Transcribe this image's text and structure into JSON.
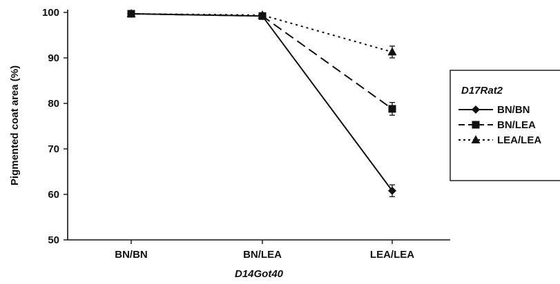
{
  "chart_data": {
    "type": "line",
    "xlabel": "D14Got40",
    "ylabel": "Pigmented coat area (%)",
    "categories": [
      "BN/BN",
      "BN/LEA",
      "LEA/LEA"
    ],
    "ylim": [
      50,
      100
    ],
    "yticks": [
      "100",
      "90",
      "80",
      "70",
      "60",
      "50"
    ],
    "grid": false,
    "legend": {
      "title": "D17Rat2",
      "placement": "right"
    },
    "series": [
      {
        "name": "BN/BN",
        "values": [
          99.7,
          99.2,
          60.8
        ],
        "errors": [
          0.3,
          0.3,
          1.3
        ],
        "marker": "diamond",
        "line": "solid"
      },
      {
        "name": "BN/LEA",
        "values": [
          99.7,
          99.2,
          78.8
        ],
        "errors": [
          0.3,
          0.3,
          1.4
        ],
        "marker": "square",
        "line": "dashed"
      },
      {
        "name": "LEA/LEA",
        "values": [
          99.7,
          99.4,
          91.3
        ],
        "errors": [
          0.3,
          0.3,
          1.3
        ],
        "marker": "triangle",
        "line": "dotted"
      }
    ]
  }
}
